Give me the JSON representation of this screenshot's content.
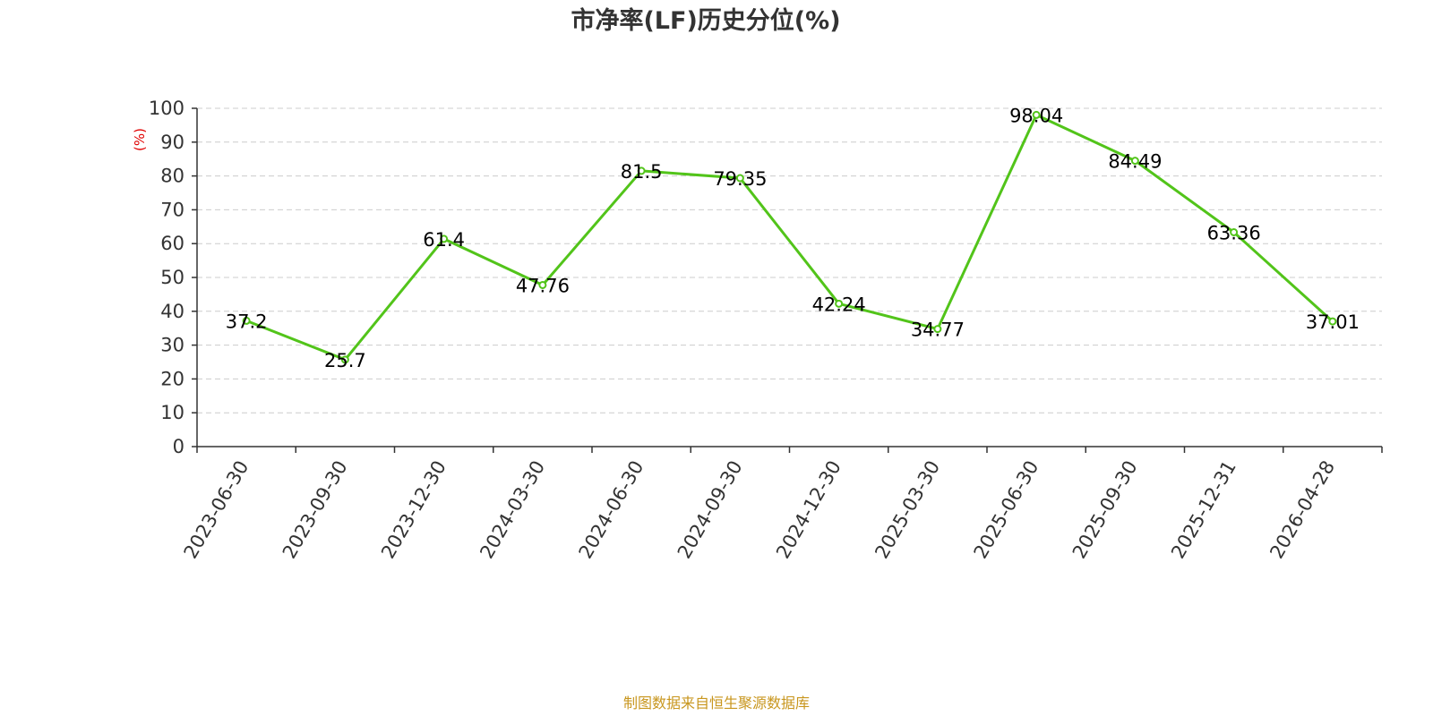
{
  "chart_data": {
    "type": "line",
    "title": "市净率(LF)历史分位(%)",
    "xlabel": "",
    "ylabel": "(%)",
    "ylim": [
      0,
      100
    ],
    "ytick_step": 10,
    "grid": true,
    "categories": [
      "2023-06-30",
      "2023-09-30",
      "2023-12-30",
      "2024-03-30",
      "2024-06-30",
      "2024-09-30",
      "2024-12-30",
      "2025-03-30",
      "2025-06-30",
      "2025-09-30",
      "2025-12-31",
      "2026-04-28"
    ],
    "series": [
      {
        "values": [
          37.2,
          25.7,
          61.4,
          47.76,
          81.5,
          79.35,
          42.24,
          34.77,
          98.04,
          84.49,
          63.36,
          37.01
        ],
        "labels": [
          "37.2",
          "25.7",
          "61.4",
          "47.76",
          "81.5",
          "79.35",
          "42.24",
          "34.77",
          "98.04",
          "84.49",
          "63.36",
          "37.01"
        ],
        "color": "#52c41a"
      }
    ]
  },
  "source_note": "制图数据来自恒生聚源数据库",
  "colors": {
    "line": "#52c41a",
    "ylabel": "#e00000",
    "source": "#c8961e",
    "grid": "#cccccc",
    "axis": "#333333"
  }
}
